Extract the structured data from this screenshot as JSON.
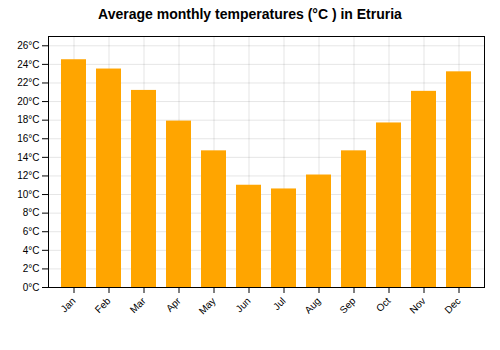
{
  "chart_data": {
    "type": "bar",
    "title": "Average monthly temperatures (°C ) in Etruria",
    "categories": [
      "Jan",
      "Feb",
      "Mar",
      "Apr",
      "May",
      "Jun",
      "Jul",
      "Aug",
      "Sep",
      "Oct",
      "Nov",
      "Dec"
    ],
    "values": [
      24.5,
      23.5,
      21.2,
      17.9,
      14.7,
      11.0,
      10.6,
      12.1,
      14.7,
      17.7,
      21.1,
      23.2
    ],
    "color": "#FFA500",
    "ylim": [
      0,
      27
    ],
    "yticks": [
      {
        "value": 0,
        "label": "0°C"
      },
      {
        "value": 2,
        "label": "2°C"
      },
      {
        "value": 4,
        "label": "4°C"
      },
      {
        "value": 6,
        "label": "6°C"
      },
      {
        "value": 8,
        "label": "8°C"
      },
      {
        "value": 10,
        "label": "10°C"
      },
      {
        "value": 12,
        "label": "12°C"
      },
      {
        "value": 14,
        "label": "14°C"
      },
      {
        "value": 16,
        "label": "16°C"
      },
      {
        "value": 18,
        "label": "18°C"
      },
      {
        "value": 20,
        "label": "20°C"
      },
      {
        "value": 22,
        "label": "22°C"
      },
      {
        "value": 24,
        "label": "24°C"
      },
      {
        "value": 26,
        "label": "26°C"
      }
    ],
    "grid": true
  }
}
